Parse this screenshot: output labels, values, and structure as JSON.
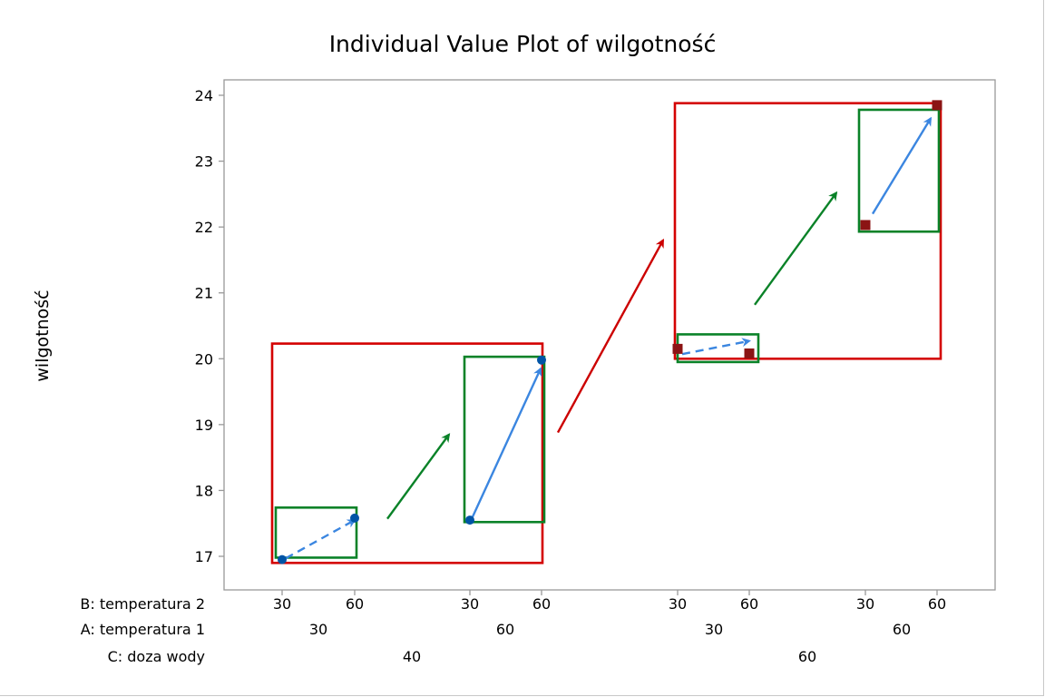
{
  "chart_data": {
    "type": "scatter",
    "title": "Individual Value Plot of wilgotność",
    "ylabel": "wilgotność",
    "xlabel": "",
    "ylim": [
      16.6,
      24.2
    ],
    "yticks": [
      17,
      18,
      19,
      20,
      21,
      22,
      23,
      24
    ],
    "grid": false,
    "factors": [
      {
        "label": "B: temperatura 2",
        "levels": [
          "30",
          "60",
          "30",
          "60",
          "30",
          "60",
          "30",
          "60"
        ]
      },
      {
        "label": "A: temperatura 1",
        "levels": [
          "30",
          "60",
          "30",
          "60"
        ]
      },
      {
        "label": "C: doza wody",
        "levels": [
          "40",
          "60"
        ]
      }
    ],
    "points": [
      {
        "C": "40",
        "A": "30",
        "B": "30",
        "y": 16.95,
        "marker": "circle"
      },
      {
        "C": "40",
        "A": "30",
        "B": "60",
        "y": 17.58,
        "marker": "circle"
      },
      {
        "C": "40",
        "A": "60",
        "B": "30",
        "y": 17.55,
        "marker": "circle"
      },
      {
        "C": "40",
        "A": "60",
        "B": "60",
        "y": 19.98,
        "marker": "circle"
      },
      {
        "C": "60",
        "A": "30",
        "B": "30",
        "y": 20.15,
        "marker": "square"
      },
      {
        "C": "60",
        "A": "30",
        "B": "60",
        "y": 20.08,
        "marker": "square"
      },
      {
        "C": "60",
        "A": "60",
        "B": "30",
        "y": 22.03,
        "marker": "square"
      },
      {
        "C": "60",
        "A": "60",
        "B": "60",
        "y": 23.85,
        "marker": "square"
      }
    ],
    "annotations": {
      "c_boxes": [
        {
          "group": "C40",
          "ymin": 16.9,
          "ymax": 20.23
        },
        {
          "group": "C60",
          "ymin": 20.0,
          "ymax": 23.88
        }
      ],
      "a_boxes": [
        {
          "group": "C40-A30",
          "ymin": 16.98,
          "ymax": 17.74
        },
        {
          "group": "C40-A60",
          "ymin": 17.52,
          "ymax": 20.03
        },
        {
          "group": "C60-A30",
          "ymin": 19.95,
          "ymax": 20.37
        },
        {
          "group": "C60-A60",
          "ymin": 21.93,
          "ymax": 23.78
        }
      ],
      "b_arrows": [
        {
          "group": "C40-A30",
          "from": 16.97,
          "to": 17.55,
          "style": "dashed"
        },
        {
          "group": "C40-A60",
          "from": 17.6,
          "to": 19.85,
          "style": "solid"
        },
        {
          "group": "C60-A30",
          "from": 20.07,
          "to": 20.27,
          "style": "dashed"
        },
        {
          "group": "C60-A60",
          "from": 22.2,
          "to": 23.65,
          "style": "solid"
        }
      ],
      "a_arrows": [
        {
          "group": "C40",
          "from": 17.57,
          "to": 18.85
        },
        {
          "group": "C60",
          "from": 20.82,
          "to": 22.52
        }
      ],
      "c_arrow": {
        "from": 18.88,
        "to": 21.8
      }
    },
    "colors": {
      "c40_marker": "#0054a6",
      "c60_marker": "#8b1414",
      "c_box": "#d40000",
      "a_box": "#0a8228",
      "b_arrow": "#3b86e0",
      "a_arrow": "#0a8228",
      "c_arrow": "#cc0000",
      "axis": "#999999"
    }
  }
}
